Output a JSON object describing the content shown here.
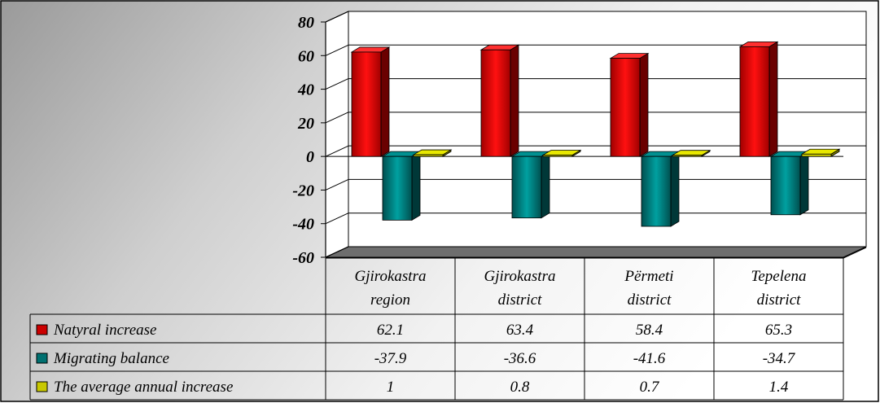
{
  "chart_data": {
    "type": "bar",
    "categories": [
      "Gjirokastra region",
      "Gjirokastra district",
      "Përmeti district",
      "Tepelena district"
    ],
    "category_lines": [
      [
        "Gjirokastra",
        "region"
      ],
      [
        "Gjirokastra",
        "district"
      ],
      [
        "Përmeti",
        "district"
      ],
      [
        "Tepelena",
        "district"
      ]
    ],
    "series": [
      {
        "name": "Natyral increase",
        "values": [
          62.1,
          63.4,
          58.4,
          65.3
        ],
        "labels": [
          "62.1",
          "63.4",
          "58.4",
          "65.3"
        ],
        "color": "#cc0000"
      },
      {
        "name": "Migrating balance",
        "values": [
          -37.9,
          -36.6,
          -41.6,
          -34.7
        ],
        "labels": [
          "-37.9",
          "-36.6",
          "-41.6",
          "-34.7"
        ],
        "color": "#007070"
      },
      {
        "name": "The average annual increase",
        "values": [
          1,
          0.8,
          0.7,
          1.4
        ],
        "labels": [
          "1",
          "0.8",
          "0.7",
          "1.4"
        ],
        "color": "#c8c800"
      }
    ],
    "ylim": [
      -60,
      80
    ],
    "yticks": [
      80,
      60,
      40,
      20,
      0,
      -20,
      -40,
      -60
    ],
    "ytick_labels": [
      "80",
      "60",
      "40",
      "20",
      "0",
      "-20",
      "-40",
      "-60"
    ],
    "grid": true,
    "data_table": true,
    "legend": "data-table"
  }
}
